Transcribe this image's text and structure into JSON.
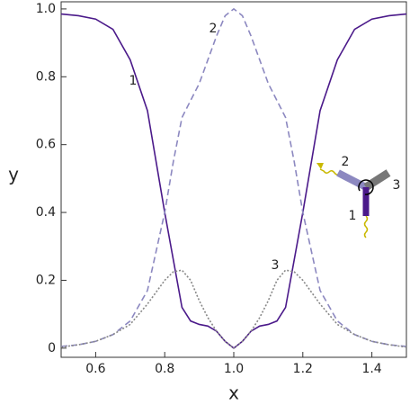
{
  "chart_data": {
    "type": "line",
    "x_label": "x",
    "y_label": "y",
    "x": [
      0.5,
      0.55,
      0.6,
      0.65,
      0.7,
      0.75,
      0.8,
      0.825,
      0.85,
      0.875,
      0.9,
      0.925,
      0.95,
      0.975,
      1.0,
      1.025,
      1.05,
      1.075,
      1.1,
      1.125,
      1.15,
      1.175,
      1.2,
      1.25,
      1.3,
      1.35,
      1.4,
      1.45,
      1.5
    ],
    "series": [
      {
        "name": "1",
        "color": "#4b1a8a",
        "style": "solid",
        "values": [
          0.985,
          0.98,
          0.97,
          0.94,
          0.85,
          0.7,
          0.4,
          0.26,
          0.12,
          0.08,
          0.07,
          0.065,
          0.05,
          0.02,
          0,
          0.02,
          0.05,
          0.065,
          0.07,
          0.08,
          0.12,
          0.26,
          0.4,
          0.7,
          0.85,
          0.94,
          0.97,
          0.98,
          0.985
        ]
      },
      {
        "name": "2",
        "color": "#8c88c0",
        "style": "dashed",
        "values": [
          0.005,
          0.01,
          0.02,
          0.04,
          0.08,
          0.17,
          0.4,
          0.55,
          0.68,
          0.73,
          0.78,
          0.85,
          0.92,
          0.98,
          1.0,
          0.98,
          0.92,
          0.85,
          0.78,
          0.73,
          0.68,
          0.55,
          0.4,
          0.17,
          0.08,
          0.04,
          0.02,
          0.01,
          0.005
        ]
      },
      {
        "name": "3",
        "color": "#888888",
        "style": "dotted",
        "values": [
          0.003,
          0.01,
          0.02,
          0.04,
          0.07,
          0.13,
          0.2,
          0.225,
          0.23,
          0.2,
          0.14,
          0.09,
          0.05,
          0.02,
          0,
          0.02,
          0.05,
          0.09,
          0.14,
          0.2,
          0.23,
          0.225,
          0.2,
          0.13,
          0.07,
          0.04,
          0.02,
          0.01,
          0.003
        ]
      }
    ],
    "xlim": [
      0.5,
      1.5
    ],
    "ylim": [
      -0.027,
      1.021
    ],
    "xticks": [
      0.6,
      0.8,
      {
        "value": 1,
        "label": "1.0"
      },
      1.2,
      1.4
    ],
    "yticks": [
      0,
      0.2,
      0.4,
      0.6,
      0.8,
      {
        "value": 1,
        "label": "1.0"
      }
    ],
    "annotations": [
      "1",
      "2",
      "3"
    ],
    "inset_labels": [
      "1",
      "2",
      "3"
    ]
  }
}
